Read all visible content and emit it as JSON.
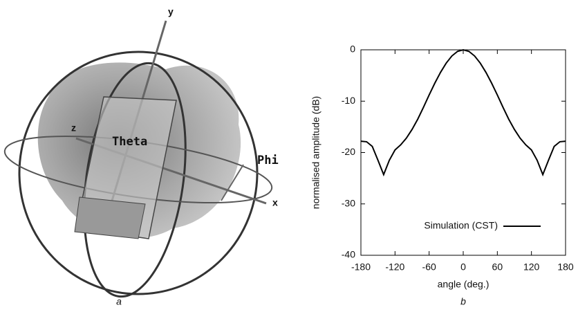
{
  "panel_a": {
    "labels": {
      "y": "y",
      "z": "z",
      "theta": "Theta",
      "phi": "Phi",
      "x": "x"
    },
    "caption": "a"
  },
  "chart_data": {
    "type": "line",
    "caption": "b",
    "x_label": "angle (deg.)",
    "y_label": "normalised amplitude (dB)",
    "x": [
      -180,
      -170,
      -160,
      -150,
      -140,
      -130,
      -120,
      -110,
      -100,
      -90,
      -80,
      -70,
      -60,
      -50,
      -40,
      -30,
      -20,
      -10,
      0,
      10,
      20,
      30,
      40,
      50,
      60,
      70,
      80,
      90,
      100,
      110,
      120,
      130,
      140,
      150,
      160,
      170,
      180
    ],
    "series": [
      {
        "name": "Simulation (CST)",
        "color": "#000000",
        "values": [
          -17.8,
          -17.9,
          -18.8,
          -21.5,
          -24.3,
          -21.5,
          -19.5,
          -18.5,
          -17.2,
          -15.5,
          -13.5,
          -11.2,
          -8.8,
          -6.5,
          -4.4,
          -2.6,
          -1.2,
          -0.3,
          0,
          -0.3,
          -1.2,
          -2.6,
          -4.4,
          -6.5,
          -8.8,
          -11.2,
          -13.5,
          -15.5,
          -17.2,
          -18.5,
          -19.5,
          -21.5,
          -24.3,
          -21.5,
          -18.8,
          -17.9,
          -17.8
        ]
      }
    ],
    "xlim": [
      -180,
      180
    ],
    "xticks": [
      -180,
      -120,
      -60,
      0,
      60,
      120,
      180
    ],
    "ylim": [
      -40,
      0
    ],
    "yticks": [
      0,
      -10,
      -20,
      -30,
      -40
    ],
    "grid": false,
    "legend": "lower right"
  }
}
